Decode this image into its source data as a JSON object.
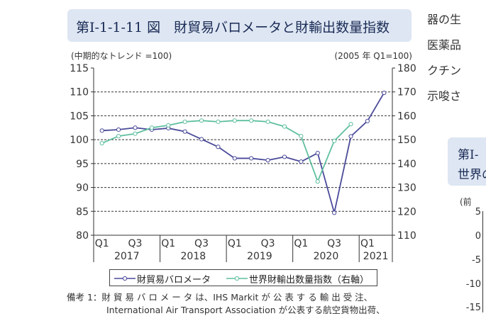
{
  "title": "第Ⅰ-1-1-11 図　財貿易バロメータと財輸出数量指数",
  "left_unit": "(中期的なトレンド =100)",
  "right_unit": "(2005 年 Q1=100)",
  "note": {
    "line1": "備考 1：財 貿 易 バ ロ メ ー タ は、IHS Markit が 公 表 す る 輸 出 受 注、",
    "line2": "International Air Transport Association が公表する航空貨物出荷、"
  },
  "side_text": [
    "器の生",
    "医薬品",
    "クチン",
    "示唆さ"
  ],
  "side_box": {
    "line1": "第Ⅰ-",
    "line2": "世界の"
  },
  "side_axis": {
    "label": "(前",
    "ticks": [
      "5",
      "0",
      "-5",
      "-10",
      "-15"
    ]
  },
  "colors": {
    "barometer": "#4a4a9a",
    "exports": "#5fbf9f",
    "grid": "#333333"
  },
  "chart_data": {
    "type": "line",
    "quarter_labels": [
      "Q1",
      "Q3",
      "Q1",
      "Q3",
      "Q1",
      "Q3",
      "Q1",
      "Q3",
      "Q1"
    ],
    "year_labels": [
      "2017",
      "2018",
      "2019",
      "2020",
      "2021"
    ],
    "x": [
      "2017Q1",
      "2017Q2",
      "2017Q3",
      "2017Q4",
      "2018Q1",
      "2018Q2",
      "2018Q3",
      "2018Q4",
      "2019Q1",
      "2019Q2",
      "2019Q3",
      "2019Q4",
      "2020Q1",
      "2020Q2",
      "2020Q3",
      "2020Q4",
      "2021Q1",
      "2021Q2"
    ],
    "yleft": {
      "ticks": [
        "80",
        "85",
        "90",
        "95",
        "100",
        "105",
        "110",
        "115"
      ],
      "lim": [
        80,
        115
      ]
    },
    "yright": {
      "ticks": [
        "110",
        "120",
        "130",
        "140",
        "150",
        "160",
        "170",
        "180"
      ],
      "lim": [
        110,
        180
      ]
    },
    "gridlines_at_left": [
      85,
      90,
      95,
      100,
      105,
      110
    ],
    "series": [
      {
        "name": "財貿易バロメータ",
        "axis": "left",
        "values": [
          101.9,
          102.1,
          102.5,
          102.1,
          102.4,
          101.7,
          100.1,
          98.5,
          96.1,
          96.1,
          95.7,
          96.4,
          95.4,
          97.2,
          84.7,
          100.7,
          103.9,
          109.8
        ]
      },
      {
        "name": "世界財輸出数量指数（右軸）",
        "axis": "right",
        "values": [
          148.5,
          151.5,
          152.5,
          155,
          156,
          157.5,
          158,
          157.5,
          158,
          158,
          157.5,
          155.5,
          151.5,
          132.5,
          149.5,
          156.5,
          null,
          null
        ]
      }
    ]
  }
}
